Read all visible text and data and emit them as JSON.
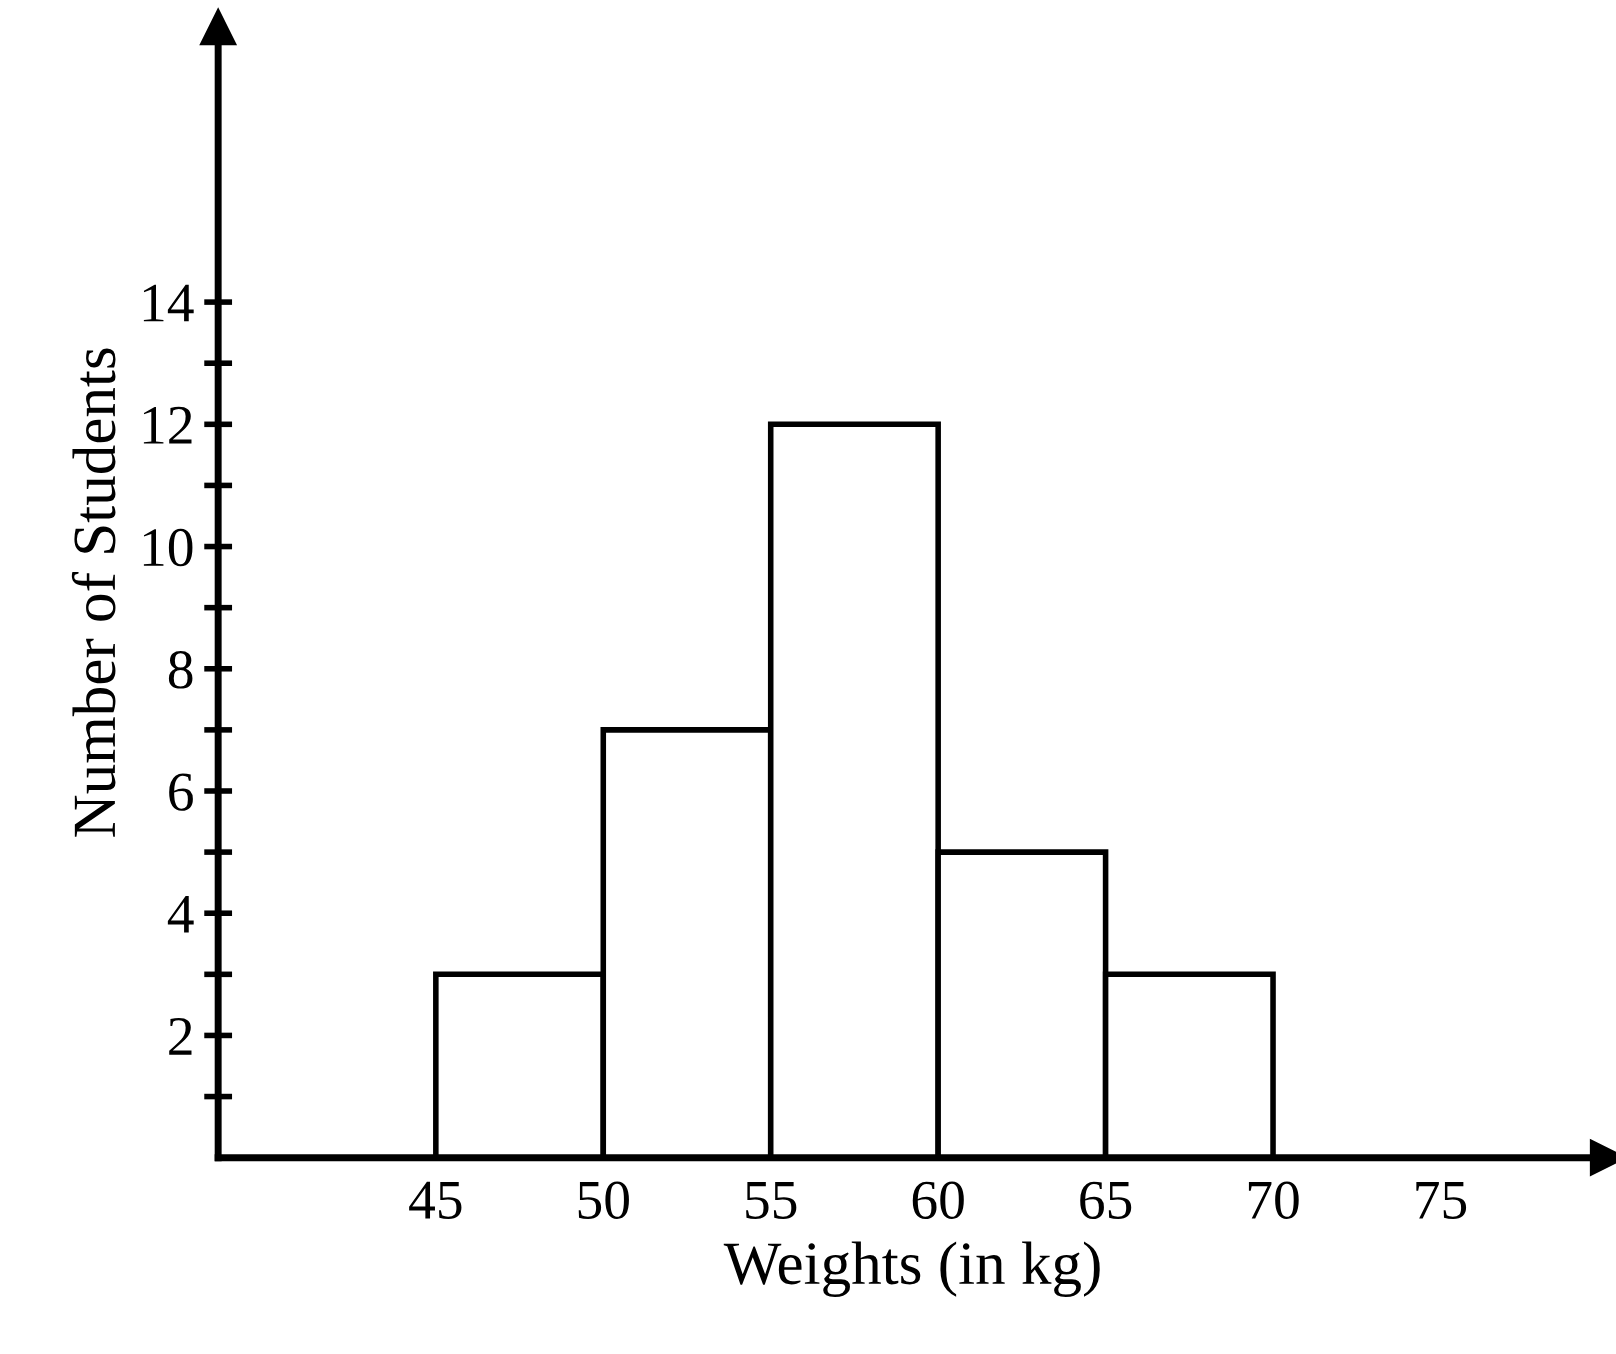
{
  "chart_data": {
    "type": "histogram",
    "xlabel": "Weights (in kg)",
    "ylabel": "Number of Students",
    "bins": [
      45,
      50,
      55,
      60,
      65,
      70
    ],
    "values": [
      3,
      7,
      12,
      5,
      3
    ],
    "color": "#ffffff",
    "xlim": [
      38.5,
      80
    ],
    "xticks": [
      45,
      50,
      55,
      60,
      65,
      70,
      75
    ],
    "ylim": [
      0,
      18.5
    ],
    "yticks": [
      {
        "value": 1,
        "label": null
      },
      2,
      {
        "value": 3,
        "label": null
      },
      4,
      {
        "value": 5,
        "label": null
      },
      6,
      {
        "value": 7,
        "label": null
      },
      8,
      {
        "value": 9,
        "label": null
      },
      10,
      {
        "value": 11,
        "label": null
      },
      12,
      {
        "value": 13,
        "label": null
      },
      14
    ],
    "grid": false
  }
}
